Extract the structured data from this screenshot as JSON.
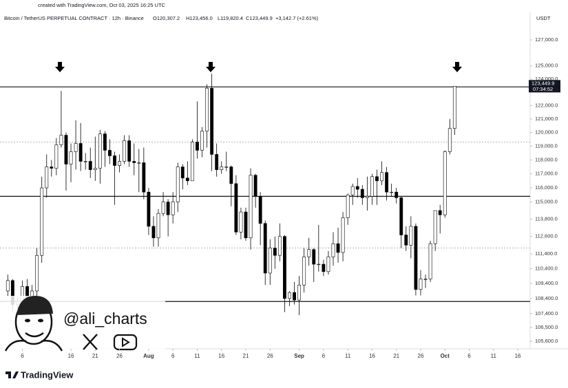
{
  "chart_data": {
    "type": "candlestick",
    "credit": "created with TradingView.com, Oct 03, 2025 16:25 UTC",
    "title": "Bitcoin / TetherUS PERPETUAL CONTRACT · 12h · Binance",
    "header_ohlc": [
      "O120,307.2",
      "H123,456.0",
      "L119,820.4",
      "C123,449.9",
      "+3,142.7 (+2.61%)"
    ],
    "currency": "USDT",
    "watermark": "@ali_charts",
    "brand": "TradingView",
    "log_scale": true,
    "up_color": "#ffffff",
    "down_color": "#000000",
    "edge_color": "#000000",
    "ylim": [
      105200,
      128240
    ],
    "yticks": [
      {
        "value": 127000,
        "label": "127,000.0"
      },
      {
        "value": 125000,
        "label": "125,000.0"
      },
      {
        "value": 124000,
        "label": "124,000.0"
      },
      {
        "value": 122000,
        "label": "122,000.0"
      },
      {
        "value": 121000,
        "label": "121,000.0"
      },
      {
        "value": 120000,
        "label": "120,000.0"
      },
      {
        "value": 119000,
        "label": "119,000.0"
      },
      {
        "value": 118000,
        "label": "118,000.0"
      },
      {
        "value": 117000,
        "label": "117,000.0"
      },
      {
        "value": 116000,
        "label": "116,000.0"
      },
      {
        "value": 115000,
        "label": "115,000.0"
      },
      {
        "value": 113800,
        "label": "113,800.0"
      },
      {
        "value": 112600,
        "label": "112,600.0"
      },
      {
        "value": 111400,
        "label": "111,400.0"
      },
      {
        "value": 110400,
        "label": "110,400.0"
      },
      {
        "value": 109400,
        "label": "109,400.0"
      },
      {
        "value": 108400,
        "label": "108,400.0"
      },
      {
        "value": 107400,
        "label": "107,400.0"
      },
      {
        "value": 106500,
        "label": "106,500.0"
      },
      {
        "value": 105600,
        "label": "105,600.0"
      }
    ],
    "xlim": [
      "2025-07-01T09:30",
      "2025-10-18T13:00"
    ],
    "xticks": [
      {
        "value": "2025-07-06",
        "label": "6"
      },
      {
        "value": "2025-07-16",
        "label": "16"
      },
      {
        "value": "2025-07-21",
        "label": "21"
      },
      {
        "value": "2025-07-26",
        "label": "26"
      },
      {
        "value": "2025-08-01",
        "label": "Aug"
      },
      {
        "value": "2025-08-06",
        "label": "6"
      },
      {
        "value": "2025-08-11",
        "label": "11"
      },
      {
        "value": "2025-08-16",
        "label": "16"
      },
      {
        "value": "2025-08-21",
        "label": "21"
      },
      {
        "value": "2025-08-26",
        "label": "26"
      },
      {
        "value": "2025-09-01",
        "label": "Sep"
      },
      {
        "value": "2025-09-06",
        "label": "6"
      },
      {
        "value": "2025-09-11",
        "label": "11"
      },
      {
        "value": "2025-09-16",
        "label": "16"
      },
      {
        "value": "2025-09-21",
        "label": "21"
      },
      {
        "value": "2025-09-26",
        "label": "26"
      },
      {
        "value": "2025-10-01",
        "label": "Oct"
      },
      {
        "value": "2025-10-06",
        "label": "6"
      },
      {
        "value": "2025-10-11",
        "label": "11"
      },
      {
        "value": "2025-10-16",
        "label": "16"
      }
    ],
    "hlines": [
      {
        "value": 123400,
        "style": "solid"
      },
      {
        "value": 119300,
        "style": "dotted"
      },
      {
        "value": 115400,
        "style": "solid"
      },
      {
        "value": 111800,
        "style": "dotted"
      },
      {
        "value": 108200,
        "style": "solid"
      }
    ],
    "price_tag": {
      "value": 123449.9,
      "label": "123,449.9",
      "timer": "07:34:52"
    },
    "x": [
      "2025-07-03",
      "2025-07-04",
      "2025-07-05",
      "2025-07-06",
      "2025-07-07",
      "2025-07-08",
      "2025-07-09",
      "2025-07-10",
      "2025-07-11",
      "2025-07-12",
      "2025-07-13",
      "2025-07-14",
      "2025-07-15",
      "2025-07-16",
      "2025-07-17",
      "2025-07-18",
      "2025-07-19",
      "2025-07-20",
      "2025-07-21",
      "2025-07-22",
      "2025-07-23",
      "2025-07-24",
      "2025-07-25",
      "2025-07-26",
      "2025-07-27",
      "2025-07-28",
      "2025-07-29",
      "2025-07-30",
      "2025-07-31",
      "2025-08-01",
      "2025-08-02",
      "2025-08-03",
      "2025-08-04",
      "2025-08-05",
      "2025-08-06",
      "2025-08-07",
      "2025-08-08",
      "2025-08-09",
      "2025-08-10",
      "2025-08-11",
      "2025-08-12",
      "2025-08-13",
      "2025-08-14",
      "2025-08-15",
      "2025-08-16",
      "2025-08-17",
      "2025-08-18",
      "2025-08-19",
      "2025-08-20",
      "2025-08-21",
      "2025-08-22",
      "2025-08-23",
      "2025-08-24",
      "2025-08-25",
      "2025-08-26",
      "2025-08-27",
      "2025-08-28",
      "2025-08-29",
      "2025-08-30",
      "2025-08-31",
      "2025-09-01",
      "2025-09-02",
      "2025-09-03",
      "2025-09-04",
      "2025-09-05",
      "2025-09-06",
      "2025-09-07",
      "2025-09-08",
      "2025-09-09",
      "2025-09-10",
      "2025-09-11",
      "2025-09-12",
      "2025-09-13",
      "2025-09-14",
      "2025-09-15",
      "2025-09-16",
      "2025-09-17",
      "2025-09-18",
      "2025-09-19",
      "2025-09-20",
      "2025-09-21",
      "2025-09-22",
      "2025-09-23",
      "2025-09-24",
      "2025-09-25",
      "2025-09-26",
      "2025-09-27",
      "2025-09-28",
      "2025-09-29",
      "2025-09-30",
      "2025-10-01",
      "2025-10-02",
      "2025-10-03"
    ],
    "open": [
      108900,
      109600,
      108000,
      108200,
      109200,
      108300,
      108900,
      111300,
      116000,
      117500,
      117400,
      119100,
      119800,
      117700,
      118600,
      119200,
      117900,
      117900,
      117300,
      117400,
      119900,
      118700,
      118300,
      117600,
      117900,
      119400,
      117900,
      117800,
      117800,
      115700,
      113300,
      112500,
      114200,
      115000,
      114100,
      115000,
      117500,
      116700,
      116500,
      119300,
      118700,
      120100,
      123300,
      118400,
      117300,
      117500,
      117500,
      116300,
      112900,
      114300,
      112500,
      116900,
      115400,
      113500,
      110100,
      111800,
      111300,
      112600,
      108400,
      108800,
      108300,
      109300,
      111200,
      111700,
      110700,
      110700,
      110200,
      111200,
      112100,
      111500,
      113900,
      115500,
      116100,
      115900,
      115300,
      115400,
      116800,
      116500,
      117100,
      115700,
      115700,
      115300,
      112700,
      112000,
      113300,
      109000,
      109700,
      109700,
      112100,
      114400,
      114100,
      118600,
      120300
    ],
    "high": [
      110000,
      109700,
      108500,
      109600,
      109700,
      109300,
      111800,
      116800,
      118400,
      118000,
      119600,
      123100,
      120000,
      119200,
      120900,
      120700,
      118500,
      118900,
      119700,
      120200,
      120100,
      119500,
      118600,
      118400,
      119800,
      119800,
      119200,
      118800,
      118900,
      116000,
      114000,
      114500,
      115700,
      115200,
      115700,
      117800,
      117700,
      117900,
      119500,
      122300,
      120400,
      123600,
      124400,
      119200,
      117900,
      118600,
      117600,
      116900,
      114600,
      114600,
      117400,
      117000,
      115700,
      113700,
      112400,
      112600,
      113500,
      112700,
      108900,
      109500,
      109900,
      111800,
      112500,
      111800,
      113400,
      111000,
      111600,
      112900,
      113200,
      114300,
      115600,
      116300,
      116700,
      116200,
      116800,
      117000,
      117300,
      117900,
      117500,
      116300,
      116000,
      115400,
      113300,
      114000,
      113500,
      110300,
      110000,
      112300,
      114400,
      114800,
      118700,
      121000,
      123456
    ],
    "low": [
      108500,
      107500,
      107700,
      107900,
      107800,
      107900,
      108400,
      110800,
      115300,
      116800,
      116900,
      118900,
      115800,
      116400,
      117300,
      117200,
      117300,
      116700,
      116500,
      116300,
      117500,
      117700,
      114800,
      117100,
      117700,
      117500,
      116900,
      115700,
      115200,
      112700,
      111900,
      111900,
      114000,
      112600,
      113500,
      114300,
      115900,
      116200,
      116500,
      118100,
      118200,
      118900,
      117200,
      116800,
      117000,
      117200,
      114700,
      112700,
      112400,
      112300,
      111700,
      114600,
      112000,
      109300,
      109300,
      110400,
      110900,
      107500,
      107900,
      108000,
      107300,
      108800,
      110600,
      109500,
      110200,
      109900,
      110000,
      110600,
      110800,
      110900,
      113400,
      114800,
      115300,
      114800,
      114400,
      114800,
      114800,
      116200,
      115100,
      115400,
      114900,
      111800,
      111600,
      111100,
      108600,
      108600,
      109100,
      109500,
      111600,
      112800,
      113900,
      118400,
      119820
    ],
    "close": [
      109600,
      108000,
      108200,
      109200,
      108300,
      108900,
      111300,
      116000,
      117500,
      117400,
      119100,
      119800,
      117700,
      118600,
      119200,
      117900,
      117900,
      117300,
      117400,
      119900,
      118700,
      118300,
      117600,
      117900,
      119400,
      117900,
      117800,
      117800,
      115700,
      113300,
      112500,
      114200,
      115000,
      114100,
      115000,
      117500,
      116700,
      116500,
      119300,
      118700,
      120100,
      123300,
      118400,
      117300,
      117500,
      117500,
      116300,
      112900,
      114300,
      112500,
      116900,
      115400,
      113500,
      110100,
      111800,
      111300,
      112600,
      108400,
      108800,
      108300,
      109300,
      111200,
      111700,
      110700,
      110700,
      110200,
      111200,
      112100,
      111500,
      113900,
      115500,
      116100,
      115900,
      115300,
      115400,
      116800,
      116500,
      117100,
      115700,
      115700,
      115300,
      112700,
      112000,
      113300,
      109000,
      109700,
      109700,
      112100,
      114400,
      114100,
      118600,
      120300,
      123450
    ]
  }
}
